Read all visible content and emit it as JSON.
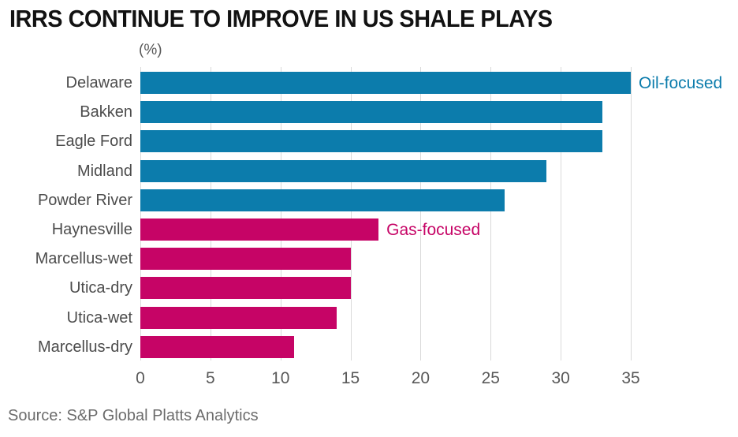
{
  "title": "IRRS CONTINUE TO IMPROVE IN US SHALE PLAYS",
  "source": "Source: S&P Global Platts Analytics",
  "colors": {
    "oil": "#0c7cac",
    "gas": "#c60466",
    "grid": "#d9d9d9",
    "title": "#121212",
    "category_label": "#4c4c4c",
    "tick_label": "#595959",
    "source_text": "#6c6c6c"
  },
  "chart_data": {
    "type": "bar",
    "orientation": "horizontal",
    "title": "IRRS CONTINUE TO IMPROVE IN US SHALE PLAYS",
    "unit_label": "(%)",
    "xlabel": "",
    "ylabel": "",
    "xlim": [
      0,
      35
    ],
    "x_ticks": [
      0,
      5,
      10,
      15,
      20,
      25,
      30,
      35
    ],
    "grid": true,
    "legend_position": "inline-annotations",
    "categories": [
      "Delaware",
      "Bakken",
      "Eagle Ford",
      "Midland",
      "Powder River",
      "Haynesville",
      "Marcellus-wet",
      "Utica-dry",
      "Utica-wet",
      "Marcellus-dry"
    ],
    "values": [
      35,
      33,
      33,
      29,
      26,
      17,
      15,
      15,
      14,
      11
    ],
    "groups": [
      "oil",
      "oil",
      "oil",
      "oil",
      "oil",
      "gas",
      "gas",
      "gas",
      "gas",
      "gas"
    ],
    "series": [
      {
        "name": "Oil-focused",
        "color": "#0c7cac",
        "categories": [
          "Delaware",
          "Bakken",
          "Eagle Ford",
          "Midland",
          "Powder River"
        ],
        "values": [
          35,
          33,
          33,
          29,
          26
        ]
      },
      {
        "name": "Gas-focused",
        "color": "#c60466",
        "categories": [
          "Haynesville",
          "Marcellus-wet",
          "Utica-dry",
          "Utica-wet",
          "Marcellus-dry"
        ],
        "values": [
          17,
          15,
          15,
          14,
          11
        ]
      }
    ],
    "annotations": [
      {
        "text": "Oil-focused",
        "row": 0,
        "color": "#0c7cac"
      },
      {
        "text": "Gas-focused",
        "row": 5,
        "color": "#c60466"
      }
    ]
  }
}
